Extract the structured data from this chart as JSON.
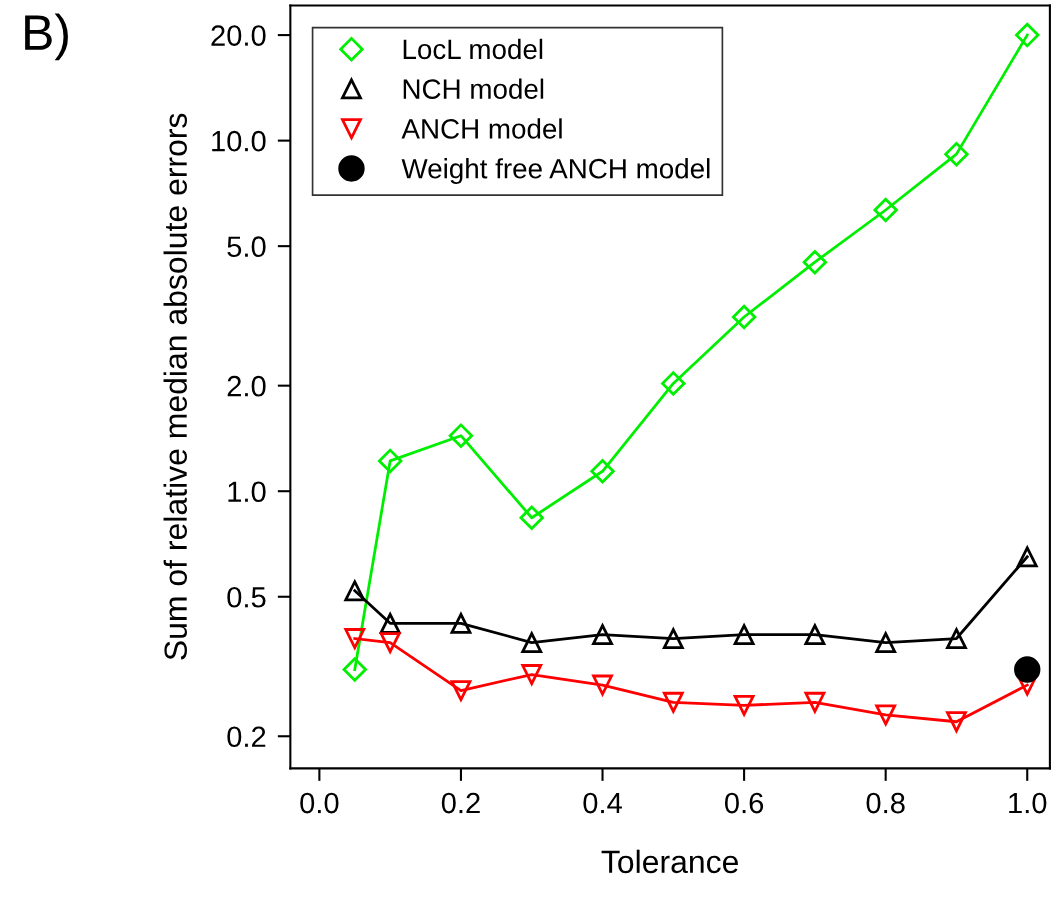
{
  "chart_data": {
    "type": "line",
    "xlabel": "Tolerance",
    "ylabel": "Sum of relative median absolute errors",
    "log": "y",
    "annotations": [
      "B)"
    ],
    "x": [
      0.05,
      0.1,
      0.2,
      0.3,
      0.4,
      0.5,
      0.6,
      0.7,
      0.8,
      0.9,
      1.0
    ],
    "series": [
      {
        "name": "LocL model",
        "color": "#00ee00",
        "marker": "diamond",
        "values": [
          0.31,
          1.22,
          1.44,
          0.84,
          1.14,
          2.03,
          3.14,
          4.5,
          6.34,
          9.15,
          20.0
        ]
      },
      {
        "name": "NCH model",
        "color": "#000000",
        "marker": "triangle",
        "values": [
          0.52,
          0.42,
          0.42,
          0.37,
          0.39,
          0.38,
          0.39,
          0.39,
          0.37,
          0.38,
          0.65
        ]
      },
      {
        "name": "ANCH model",
        "color": "#ff0000",
        "marker": "triangle_down",
        "values": [
          0.38,
          0.37,
          0.27,
          0.3,
          0.28,
          0.25,
          0.245,
          0.25,
          0.23,
          0.22,
          0.28
        ]
      },
      {
        "name": "Weight free ANCH model",
        "type": "scatter",
        "color": "#000000",
        "marker": "circle",
        "x": [
          1.0
        ],
        "values": [
          0.31
        ]
      }
    ],
    "xlim": [
      -0.041,
      1.032
    ],
    "ylim": [
      0.162,
      24.3
    ],
    "xticks": [
      {
        "value": 0.0,
        "label": "0.0"
      },
      {
        "value": 0.2,
        "label": "0.2"
      },
      {
        "value": 0.4,
        "label": "0.4"
      },
      {
        "value": 0.6,
        "label": "0.6"
      },
      {
        "value": 0.8,
        "label": "0.8"
      },
      {
        "value": 1.0,
        "label": "1.0"
      }
    ],
    "yticks": [
      {
        "value": 0.2,
        "label": "0.2"
      },
      {
        "value": 0.5,
        "label": "0.5"
      },
      {
        "value": 1.0,
        "label": "1.0"
      },
      {
        "value": 2.0,
        "label": "2.0"
      },
      {
        "value": 5.0,
        "label": "5.0"
      },
      {
        "value": 10.0,
        "label": "10.0"
      },
      {
        "value": 20.0,
        "label": "20.0"
      }
    ],
    "grid": false,
    "legend": "top left"
  }
}
